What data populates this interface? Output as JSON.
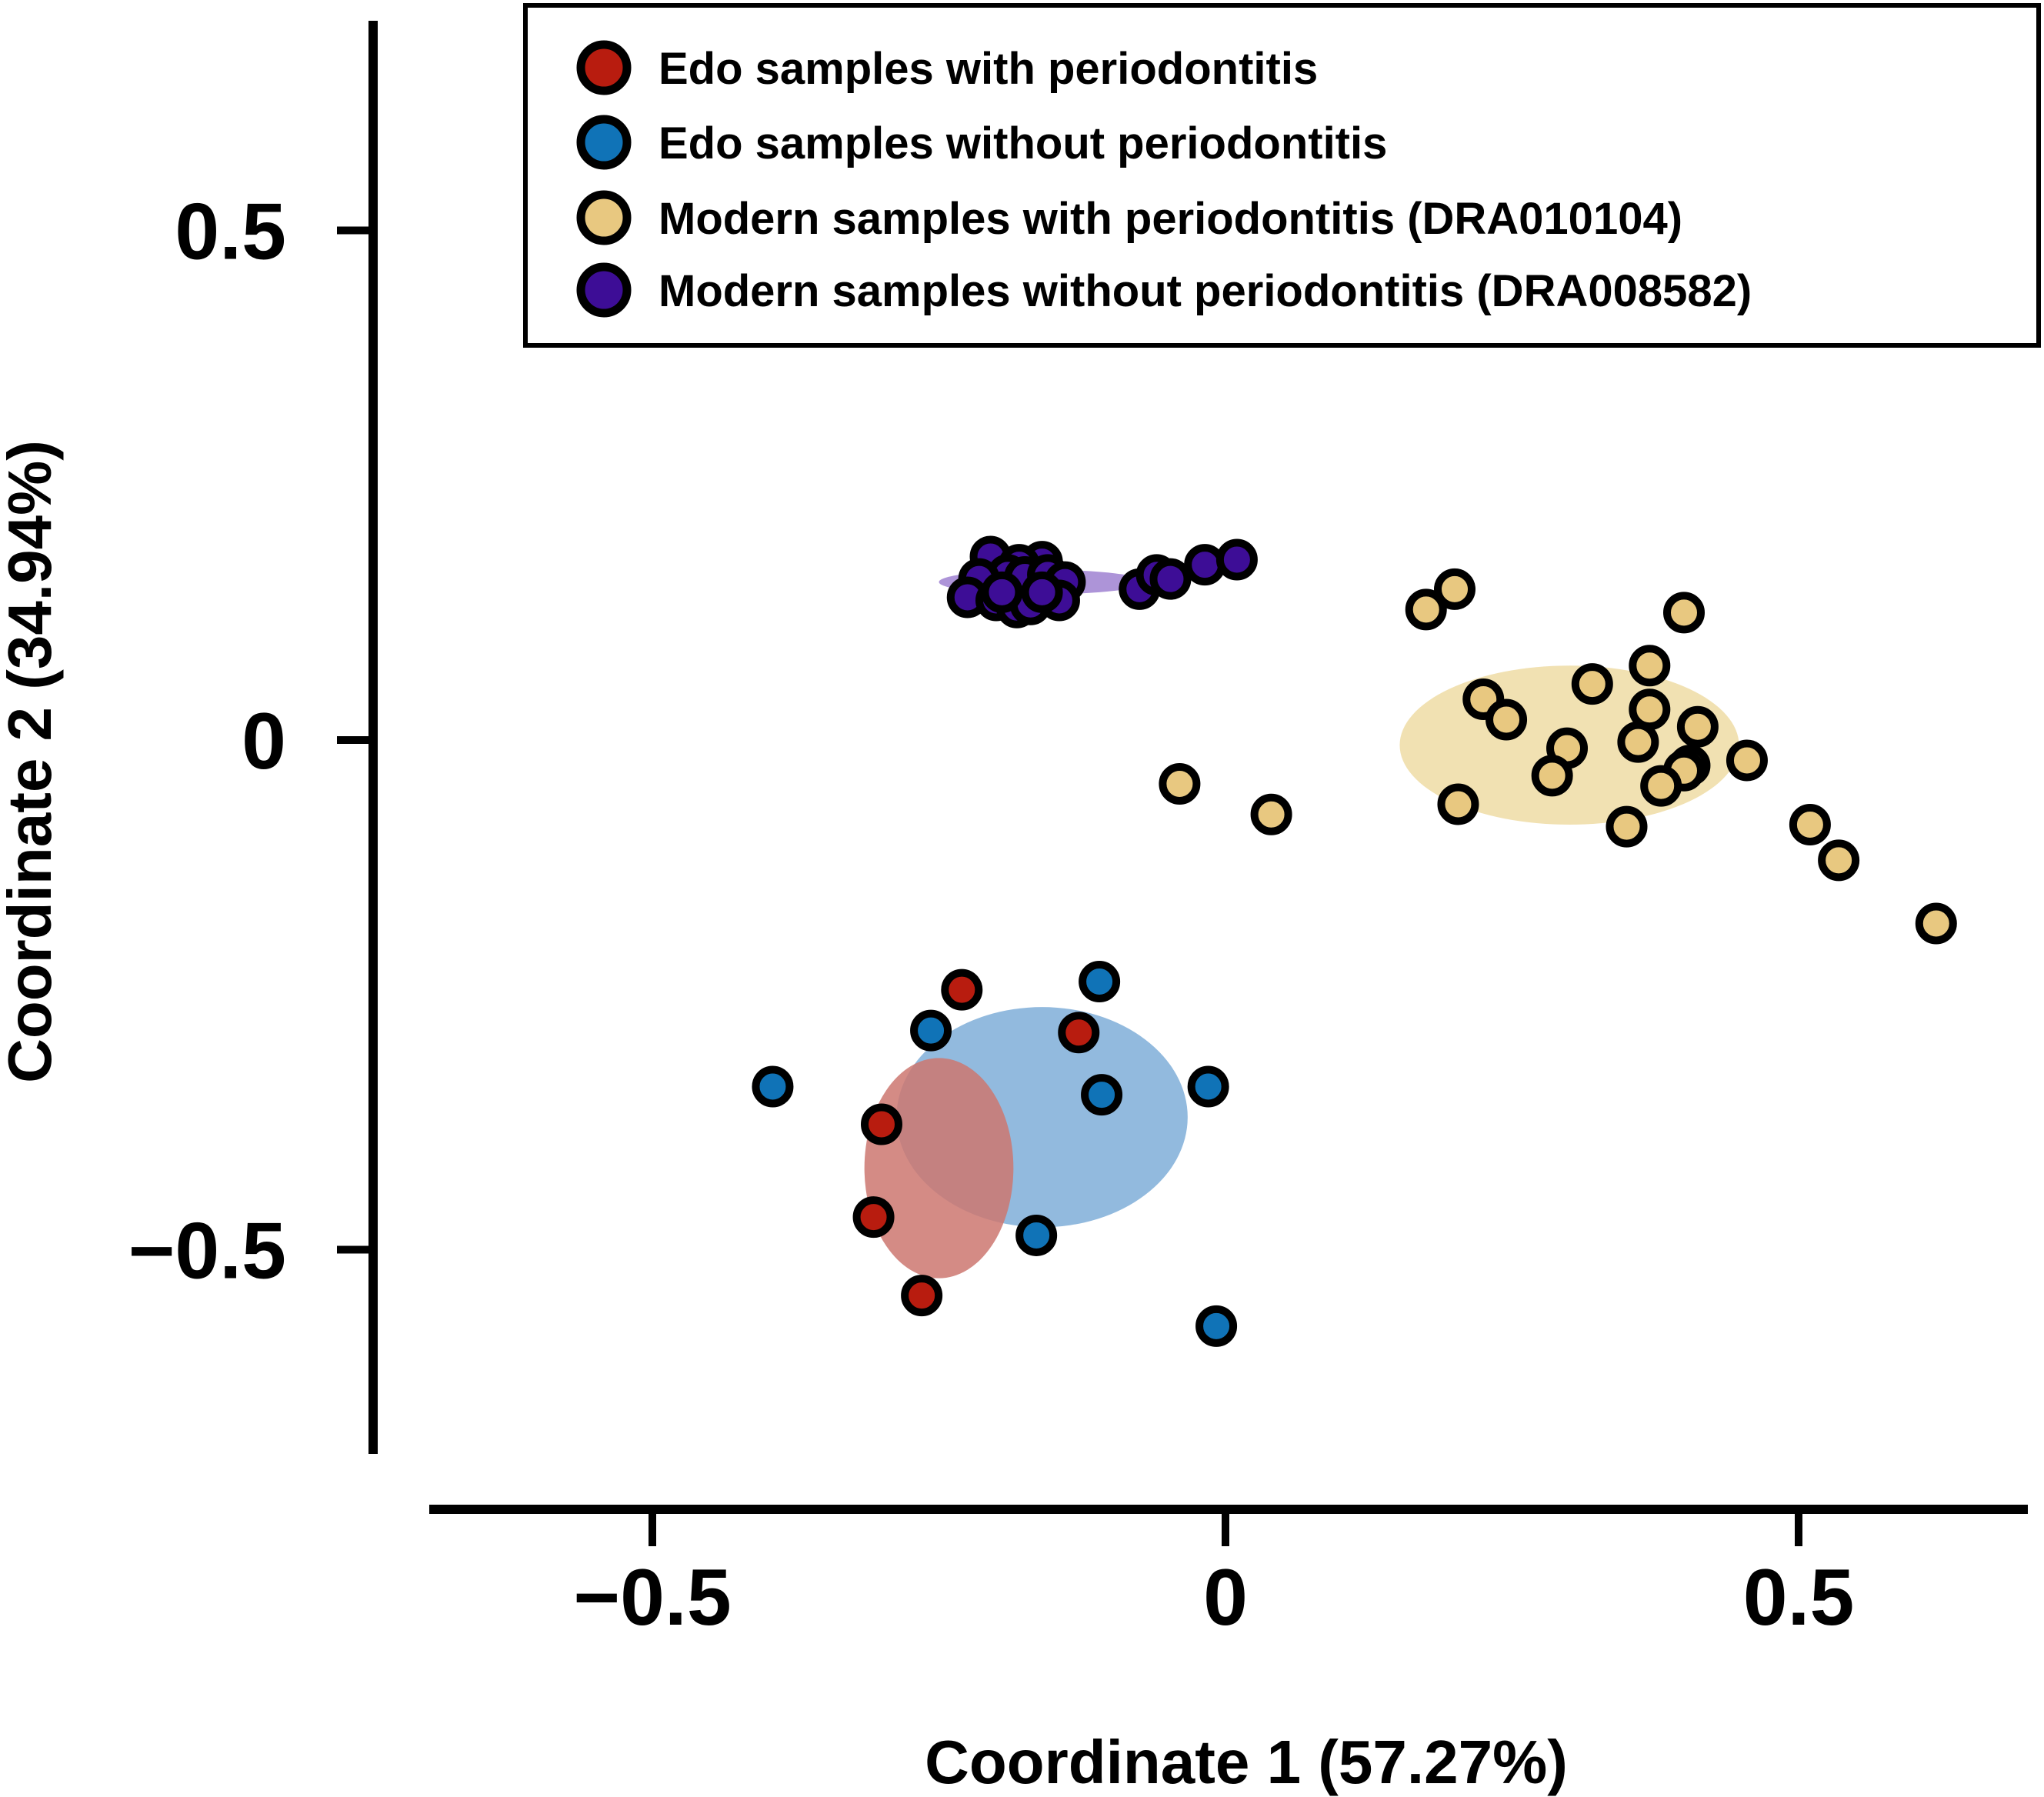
{
  "chart_data": {
    "type": "scatter",
    "title": "",
    "xlabel": "Coordinate 1 (57.27%)",
    "ylabel": "Coordinate 2 (34.94%)",
    "xlim": [
      -0.7,
      0.7
    ],
    "ylim": [
      -0.7,
      0.7
    ],
    "x_ticks": [
      {
        "value": -0.5,
        "label": "−0.5"
      },
      {
        "value": 0,
        "label": "0"
      },
      {
        "value": 0.5,
        "label": "0.5"
      }
    ],
    "y_ticks": [
      {
        "value": 0.5,
        "label": "0.5"
      },
      {
        "value": 0,
        "label": "0"
      },
      {
        "value": -0.5,
        "label": "−0.5"
      }
    ],
    "legend_position": "top-right",
    "series": [
      {
        "name": "Edo samples with periodontitis",
        "color": "#b81c0f",
        "ellipse": {
          "cx": -0.25,
          "cy": -0.42,
          "rx": 0.065,
          "ry": 0.108,
          "color": "#cc7770"
        },
        "points": [
          {
            "x": -0.23,
            "y": -0.245
          },
          {
            "x": -0.128,
            "y": -0.287
          },
          {
            "x": -0.3,
            "y": -0.377
          },
          {
            "x": -0.307,
            "y": -0.468
          },
          {
            "x": -0.265,
            "y": -0.545
          }
        ]
      },
      {
        "name": "Edo samples without periodontitis",
        "color": "#1073b7",
        "ellipse": {
          "cx": -0.16,
          "cy": -0.37,
          "rx": 0.127,
          "ry": 0.108,
          "color": "#8cb6dc"
        },
        "points": [
          {
            "x": -0.11,
            "y": -0.237
          },
          {
            "x": -0.257,
            "y": -0.285
          },
          {
            "x": -0.395,
            "y": -0.34
          },
          {
            "x": -0.108,
            "y": -0.348
          },
          {
            "x": -0.015,
            "y": -0.34
          },
          {
            "x": -0.165,
            "y": -0.486
          },
          {
            "x": -0.008,
            "y": -0.575
          }
        ]
      },
      {
        "name": "Modern samples with periodontitis (DRA010104)",
        "color": "#e8c880",
        "ellipse": {
          "cx": 0.3,
          "cy": -0.005,
          "rx": 0.148,
          "ry": 0.078,
          "color": "#f0dfae"
        },
        "points": [
          {
            "x": 0.175,
            "y": 0.128
          },
          {
            "x": 0.2,
            "y": 0.148
          },
          {
            "x": 0.4,
            "y": 0.125
          },
          {
            "x": 0.37,
            "y": 0.073
          },
          {
            "x": 0.32,
            "y": 0.055
          },
          {
            "x": 0.225,
            "y": 0.04
          },
          {
            "x": 0.245,
            "y": 0.02
          },
          {
            "x": 0.37,
            "y": 0.03
          },
          {
            "x": 0.412,
            "y": 0.013
          },
          {
            "x": 0.298,
            "y": -0.008
          },
          {
            "x": 0.36,
            "y": -0.002
          },
          {
            "x": 0.405,
            "y": -0.025
          },
          {
            "x": 0.455,
            "y": -0.02
          },
          {
            "x": 0.4,
            "y": -0.03
          },
          {
            "x": 0.285,
            "y": -0.035
          },
          {
            "x": 0.38,
            "y": -0.045
          },
          {
            "x": 0.203,
            "y": -0.063
          },
          {
            "x": 0.35,
            "y": -0.085
          },
          {
            "x": -0.04,
            "y": -0.043
          },
          {
            "x": 0.04,
            "y": -0.073
          },
          {
            "x": 0.51,
            "y": -0.083
          },
          {
            "x": 0.535,
            "y": -0.118
          },
          {
            "x": 0.62,
            "y": -0.18
          }
        ]
      },
      {
        "name": "Modern samples without periodontitis (DRA008582)",
        "color": "#3d0d96",
        "ellipse": {
          "cx": -0.16,
          "cy": 0.155,
          "rx": 0.09,
          "ry": 0.012,
          "color": "#a98ed6"
        },
        "points": [
          {
            "x": -0.205,
            "y": 0.18
          },
          {
            "x": -0.16,
            "y": 0.175
          },
          {
            "x": -0.18,
            "y": 0.172
          },
          {
            "x": -0.19,
            "y": 0.162
          },
          {
            "x": -0.215,
            "y": 0.158
          },
          {
            "x": -0.175,
            "y": 0.16
          },
          {
            "x": -0.155,
            "y": 0.162
          },
          {
            "x": -0.14,
            "y": 0.155
          },
          {
            "x": -0.225,
            "y": 0.14
          },
          {
            "x": -0.2,
            "y": 0.137
          },
          {
            "x": -0.182,
            "y": 0.13
          },
          {
            "x": -0.17,
            "y": 0.133
          },
          {
            "x": -0.145,
            "y": 0.137
          },
          {
            "x": -0.195,
            "y": 0.145
          },
          {
            "x": -0.16,
            "y": 0.145
          },
          {
            "x": -0.075,
            "y": 0.148
          },
          {
            "x": -0.06,
            "y": 0.162
          },
          {
            "x": -0.048,
            "y": 0.158
          },
          {
            "x": -0.018,
            "y": 0.172
          },
          {
            "x": 0.01,
            "y": 0.177
          }
        ]
      }
    ]
  }
}
